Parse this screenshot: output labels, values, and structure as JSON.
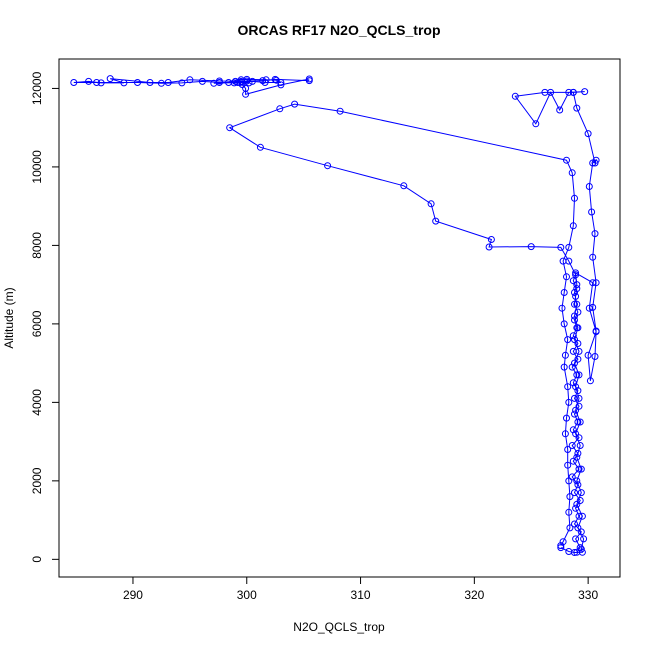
{
  "chart_data": {
    "type": "line",
    "title": "ORCAS RF17 N2O_QCLS_trop",
    "xlabel": "N2O_QCLS_trop",
    "ylabel": "Altitude (m)",
    "xlim": [
      283.5,
      332.8
    ],
    "ylim": [
      -450,
      12750
    ],
    "x_ticks": [
      290,
      300,
      310,
      320,
      330
    ],
    "y_ticks": [
      0,
      2000,
      4000,
      6000,
      8000,
      10000,
      12000
    ],
    "grid": false,
    "legend": "none",
    "line_color": "#0000ff",
    "marker": "open-circle",
    "series": [
      {
        "values": [
          [
            329.0,
            180
          ],
          [
            329.3,
            300
          ],
          [
            328.9,
            520
          ],
          [
            329.4,
            700
          ],
          [
            328.8,
            900
          ],
          [
            329.2,
            1100
          ],
          [
            328.9,
            1300
          ],
          [
            329.3,
            1500
          ],
          [
            328.8,
            1700
          ],
          [
            329.1,
            1900
          ],
          [
            328.6,
            2100
          ],
          [
            329.2,
            2300
          ],
          [
            328.7,
            2500
          ],
          [
            329.1,
            2700
          ],
          [
            328.6,
            2900
          ],
          [
            329.2,
            3100
          ],
          [
            328.7,
            3300
          ],
          [
            329.1,
            3500
          ],
          [
            328.8,
            3700
          ],
          [
            329.2,
            3900
          ],
          [
            328.8,
            4100
          ],
          [
            329.1,
            4300
          ],
          [
            328.7,
            4500
          ],
          [
            329.0,
            4700
          ],
          [
            328.6,
            4900
          ],
          [
            329.1,
            5100
          ],
          [
            328.7,
            5300
          ],
          [
            329.1,
            5500
          ],
          [
            328.7,
            5700
          ],
          [
            329.0,
            5900
          ],
          [
            328.8,
            6100
          ],
          [
            329.1,
            6300
          ],
          [
            328.8,
            6500
          ],
          [
            328.9,
            6700
          ],
          [
            329.0,
            6900
          ],
          [
            328.7,
            7100
          ],
          [
            328.9,
            7250
          ],
          [
            328.3,
            7600
          ],
          [
            327.6,
            7950
          ],
          [
            325.0,
            7970
          ],
          [
            321.3,
            7960
          ],
          [
            321.5,
            8150
          ],
          [
            316.6,
            8620
          ],
          [
            316.2,
            9060
          ],
          [
            313.8,
            9520
          ],
          [
            307.1,
            10030
          ],
          [
            301.2,
            10500
          ],
          [
            298.5,
            11000
          ],
          [
            302.9,
            11480
          ],
          [
            304.2,
            11600
          ],
          [
            308.2,
            11420
          ],
          [
            328.1,
            10170
          ],
          [
            328.6,
            9850
          ],
          [
            328.8,
            9200
          ],
          [
            328.7,
            8500
          ],
          [
            328.3,
            7950
          ],
          [
            327.8,
            7600
          ],
          [
            328.1,
            7200
          ],
          [
            327.9,
            6800
          ],
          [
            327.7,
            6400
          ],
          [
            327.9,
            6000
          ],
          [
            328.2,
            5600
          ],
          [
            328.0,
            5200
          ],
          [
            327.9,
            4900
          ],
          [
            328.2,
            4400
          ],
          [
            328.3,
            4000
          ],
          [
            328.1,
            3600
          ],
          [
            328.0,
            3200
          ],
          [
            328.2,
            2800
          ],
          [
            328.2,
            2400
          ],
          [
            328.3,
            2000
          ],
          [
            328.4,
            1600
          ],
          [
            328.3,
            1200
          ],
          [
            328.4,
            800
          ],
          [
            327.8,
            450
          ],
          [
            327.6,
            350
          ]
        ]
      },
      {
        "values": [
          [
            327.6,
            300
          ],
          [
            328.3,
            200
          ],
          [
            328.8,
            175
          ],
          [
            329.5,
            180
          ],
          [
            329.4,
            260
          ],
          [
            329.6,
            520
          ],
          [
            329.1,
            800
          ],
          [
            329.5,
            1100
          ],
          [
            329.0,
            1400
          ],
          [
            329.4,
            1700
          ],
          [
            329.0,
            2000
          ],
          [
            329.4,
            2300
          ],
          [
            329.0,
            2600
          ],
          [
            329.3,
            2900
          ],
          [
            328.9,
            3200
          ],
          [
            329.3,
            3500
          ],
          [
            328.9,
            3800
          ],
          [
            329.2,
            4100
          ],
          [
            328.9,
            4400
          ],
          [
            329.2,
            4700
          ],
          [
            328.8,
            5000
          ],
          [
            329.2,
            5300
          ],
          [
            328.8,
            5600
          ],
          [
            329.1,
            5900
          ],
          [
            328.8,
            6200
          ],
          [
            329.0,
            6500
          ],
          [
            328.8,
            6800
          ],
          [
            329.0,
            7000
          ],
          [
            328.9,
            7300
          ],
          [
            330.4,
            7050
          ],
          [
            330.1,
            6400
          ],
          [
            330.7,
            5800
          ],
          [
            330.0,
            5200
          ],
          [
            330.2,
            4550
          ],
          [
            330.6,
            5170
          ],
          [
            330.7,
            5820
          ],
          [
            330.4,
            6420
          ],
          [
            330.7,
            7050
          ],
          [
            330.4,
            7700
          ],
          [
            330.6,
            8300
          ],
          [
            330.3,
            8850
          ],
          [
            330.1,
            9500
          ],
          [
            330.4,
            10100
          ],
          [
            330.7,
            10170
          ],
          [
            330.6,
            10100
          ],
          [
            330.0,
            10850
          ],
          [
            329.0,
            11500
          ],
          [
            328.7,
            11900
          ],
          [
            329.7,
            11920
          ],
          [
            328.3,
            11900
          ],
          [
            327.5,
            11450
          ],
          [
            326.7,
            11900
          ],
          [
            325.4,
            11100
          ],
          [
            323.6,
            11800
          ],
          [
            326.2,
            11900
          ],
          [
            328.7,
            11900
          ]
        ]
      },
      {
        "values": [
          [
            305.5,
            12200
          ],
          [
            302.5,
            12230
          ],
          [
            301.4,
            12200
          ],
          [
            299.5,
            12180
          ],
          [
            297.6,
            12190
          ],
          [
            295.0,
            12220
          ],
          [
            293.1,
            12150
          ],
          [
            291.5,
            12150
          ],
          [
            288.0,
            12250
          ],
          [
            289.2,
            12140
          ],
          [
            287.2,
            12140
          ],
          [
            286.1,
            12180
          ],
          [
            284.8,
            12150
          ],
          [
            286.8,
            12150
          ],
          [
            290.4,
            12150
          ],
          [
            292.5,
            12130
          ],
          [
            294.3,
            12140
          ],
          [
            296.1,
            12180
          ],
          [
            297.6,
            12150
          ],
          [
            299.2,
            12150
          ],
          [
            300.5,
            12180
          ],
          [
            301.6,
            12150
          ],
          [
            303.0,
            12150
          ],
          [
            302.6,
            12210
          ],
          [
            301.7,
            12220
          ],
          [
            300.0,
            12230
          ],
          [
            299.5,
            12220
          ],
          [
            298.4,
            12150
          ],
          [
            297.1,
            12130
          ],
          [
            299.4,
            12150
          ],
          [
            299.6,
            12160
          ],
          [
            300.2,
            12140
          ],
          [
            299.0,
            12180
          ],
          [
            298.9,
            12140
          ],
          [
            300.0,
            12190
          ],
          [
            299.6,
            12100
          ],
          [
            299.9,
            12000
          ],
          [
            299.9,
            11850
          ],
          [
            303.0,
            12090
          ],
          [
            305.5,
            12240
          ]
        ]
      }
    ]
  }
}
